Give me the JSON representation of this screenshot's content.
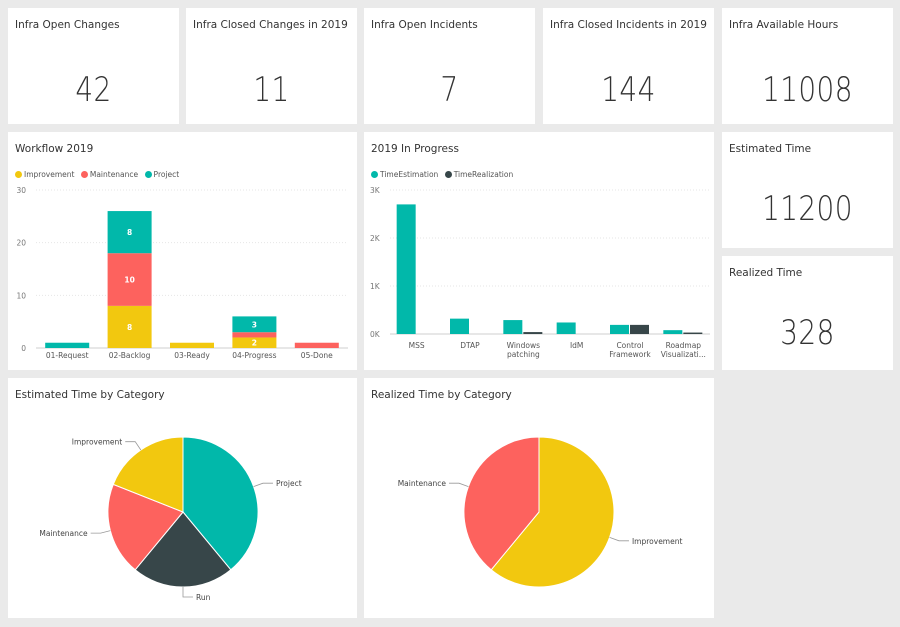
{
  "kpis": [
    {
      "id": "open-changes",
      "title": "Infra Open Changes",
      "value": "42"
    },
    {
      "id": "closed-changes",
      "title": "Infra Closed Changes in 2019",
      "value": "11"
    },
    {
      "id": "open-incidents",
      "title": "Infra Open Incidents",
      "value": "7"
    },
    {
      "id": "closed-incidents",
      "title": "Infra Closed Incidents in 2019",
      "value": "144"
    },
    {
      "id": "available-hours",
      "title": "Infra Available Hours",
      "value": "11008"
    },
    {
      "id": "estimated-time",
      "title": "Estimated Time",
      "value": "11200"
    },
    {
      "id": "realized-time",
      "title": "Realized Time",
      "value": "328"
    }
  ],
  "colors": {
    "improvement": "#F2C80F",
    "maintenance": "#FD625E",
    "project": "#01B8AA",
    "run": "#374649",
    "time_estimation": "#01B8AA",
    "time_realization": "#374649"
  },
  "chart_data": [
    {
      "id": "workflow",
      "type": "bar",
      "stacked": true,
      "title": "Workflow 2019",
      "categories": [
        "01-Request",
        "02-Backlog",
        "03-Ready",
        "04-Progress",
        "05-Done"
      ],
      "series": [
        {
          "name": "Improvement",
          "color": "#F2C80F",
          "values": [
            0,
            8,
            1,
            2,
            0
          ],
          "labels": [
            "",
            "8",
            "",
            "2",
            ""
          ]
        },
        {
          "name": "Maintenance",
          "color": "#FD625E",
          "values": [
            0,
            10,
            0,
            1,
            1
          ],
          "labels": [
            "",
            "10",
            "",
            "",
            ""
          ]
        },
        {
          "name": "Project",
          "color": "#01B8AA",
          "values": [
            1,
            8,
            0,
            3,
            0
          ],
          "labels": [
            "",
            "8",
            "",
            "3",
            ""
          ]
        }
      ],
      "ylim": [
        0,
        30
      ],
      "yticks": [
        0,
        10,
        20,
        30
      ],
      "ytick_labels": [
        "0",
        "10",
        "20",
        "30"
      ],
      "grid": true,
      "legend": "top-left"
    },
    {
      "id": "in-progress",
      "type": "bar",
      "title": "2019 In Progress",
      "categories": [
        "MSS",
        "DTAP",
        "Windows patching",
        "IdM",
        "Control Framework",
        "Roadmap Visualizati..."
      ],
      "series": [
        {
          "name": "TimeEstimation",
          "color": "#01B8AA",
          "values": [
            2700,
            320,
            290,
            240,
            190,
            80
          ]
        },
        {
          "name": "TimeRealization",
          "color": "#374649",
          "values": [
            0,
            0,
            40,
            0,
            190,
            30
          ]
        }
      ],
      "ylim": [
        0,
        3000
      ],
      "yticks": [
        0,
        1000,
        2000,
        3000
      ],
      "ytick_labels": [
        "0K",
        "1K",
        "2K",
        "3K"
      ],
      "grid": true,
      "legend": "top-left"
    },
    {
      "id": "estimated-by-category",
      "type": "pie",
      "title": "Estimated Time by Category",
      "slices": [
        {
          "label": "Project",
          "value": 39,
          "color": "#01B8AA"
        },
        {
          "label": "Run",
          "value": 22,
          "color": "#374649"
        },
        {
          "label": "Maintenance",
          "value": 20,
          "color": "#FD625E"
        },
        {
          "label": "Improvement",
          "value": 19,
          "color": "#F2C80F"
        }
      ]
    },
    {
      "id": "realized-by-category",
      "type": "pie",
      "title": "Realized Time by Category",
      "slices": [
        {
          "label": "Improvement",
          "value": 61,
          "color": "#F2C80F"
        },
        {
          "label": "Maintenance",
          "value": 39,
          "color": "#FD625E"
        }
      ]
    }
  ]
}
